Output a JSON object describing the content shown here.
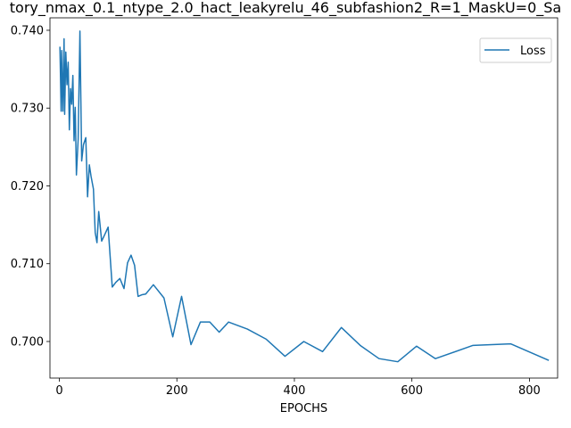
{
  "chart_data": {
    "type": "line",
    "title": "tory_nmax_0.1_ntype_2.0_hact_leakyrelu_46_subfashion2_R=1_MaskU=0_Sa",
    "xlabel": "EPOCHS",
    "ylabel": "",
    "xlim": [
      -16,
      848
    ],
    "ylim": [
      0.6953,
      0.7416
    ],
    "xticks": [
      0,
      200,
      400,
      600,
      800
    ],
    "yticks": [
      0.7,
      0.71,
      0.72,
      0.73,
      0.74
    ],
    "ytick_labels": [
      "0.700",
      "0.710",
      "0.720",
      "0.730",
      "0.740"
    ],
    "grid": false,
    "legend_position": "top-right",
    "series": [
      {
        "name": "Loss",
        "color": "#1f77b4",
        "x": [
          1,
          3,
          4,
          6,
          8,
          9,
          11,
          13,
          15,
          17,
          19,
          21,
          23,
          25,
          27,
          29,
          32,
          35,
          38,
          41,
          45,
          48,
          51,
          54,
          58,
          61,
          64,
          67,
          72,
          77,
          83,
          90,
          96,
          103,
          110,
          116,
          122,
          128,
          134,
          140,
          147,
          160,
          178,
          193,
          208,
          224,
          240,
          256,
          272,
          288,
          320,
          352,
          384,
          416,
          448,
          480,
          512,
          544,
          576,
          608,
          640,
          704,
          768,
          832
        ],
        "y": [
          0.7378,
          0.7296,
          0.7374,
          0.7296,
          0.7389,
          0.7292,
          0.7372,
          0.733,
          0.7359,
          0.7272,
          0.7325,
          0.7305,
          0.7342,
          0.7258,
          0.7301,
          0.7214,
          0.726,
          0.7399,
          0.7232,
          0.7253,
          0.7262,
          0.7186,
          0.7227,
          0.7212,
          0.7196,
          0.714,
          0.7127,
          0.7167,
          0.7129,
          0.7137,
          0.7147,
          0.707,
          0.7076,
          0.7081,
          0.7068,
          0.7101,
          0.7111,
          0.7098,
          0.7058,
          0.706,
          0.7061,
          0.7073,
          0.7056,
          0.7006,
          0.7058,
          0.6996,
          0.7025,
          0.7025,
          0.7012,
          0.7025,
          0.7016,
          0.7003,
          0.6981,
          0.7,
          0.6987,
          0.7018,
          0.6995,
          0.6978,
          0.6974,
          0.6994,
          0.6978,
          0.6995,
          0.6997,
          0.6976
        ]
      }
    ]
  }
}
